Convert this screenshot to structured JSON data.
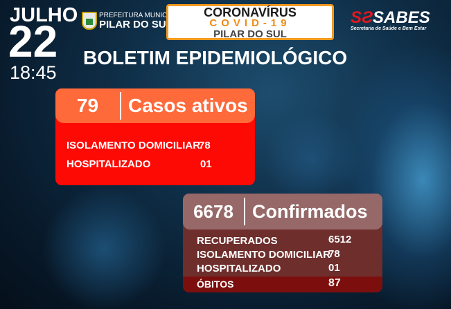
{
  "date": {
    "month": "JULHO",
    "day": "22",
    "time": "18:45"
  },
  "prefeitura": {
    "line1": "PREFEITURA MUNICIPAL",
    "line2": "PILAR DO SUL"
  },
  "header_box": {
    "line1": "CORONAVÍRUS",
    "line2": "COVID-19",
    "line3": "PILAR DO SUL"
  },
  "sabes": {
    "logo": "SABES",
    "subtitle": "Secretaria de Saúde e Bem Estar"
  },
  "title": "BOLETIM EPIDEMIOLÓGICO",
  "active": {
    "count": "79",
    "label": "Casos ativos",
    "rows": [
      {
        "label": "ISOLAMENTO DOMICILIAR",
        "value": "78"
      },
      {
        "label": "HOSPITALIZADO",
        "value": "01"
      }
    ]
  },
  "confirmed": {
    "count": "6678",
    "label": "Confirmados",
    "rows": [
      {
        "label": "RECUPERADOS",
        "value": "6512"
      },
      {
        "label": "ISOLAMENTO DOMICILIAR",
        "value": "78"
      },
      {
        "label": "HOSPITALIZADO",
        "value": "01"
      },
      {
        "label": "ÓBITOS",
        "value": "87"
      }
    ]
  },
  "colors": {
    "active_header": "#fe6a3a",
    "active_body": "#fe0a05",
    "confirmed_header": "#976868",
    "confirmed_body": "#6e2e2c",
    "obitos": "#7c0f0e",
    "accent": "#f39a1e"
  }
}
